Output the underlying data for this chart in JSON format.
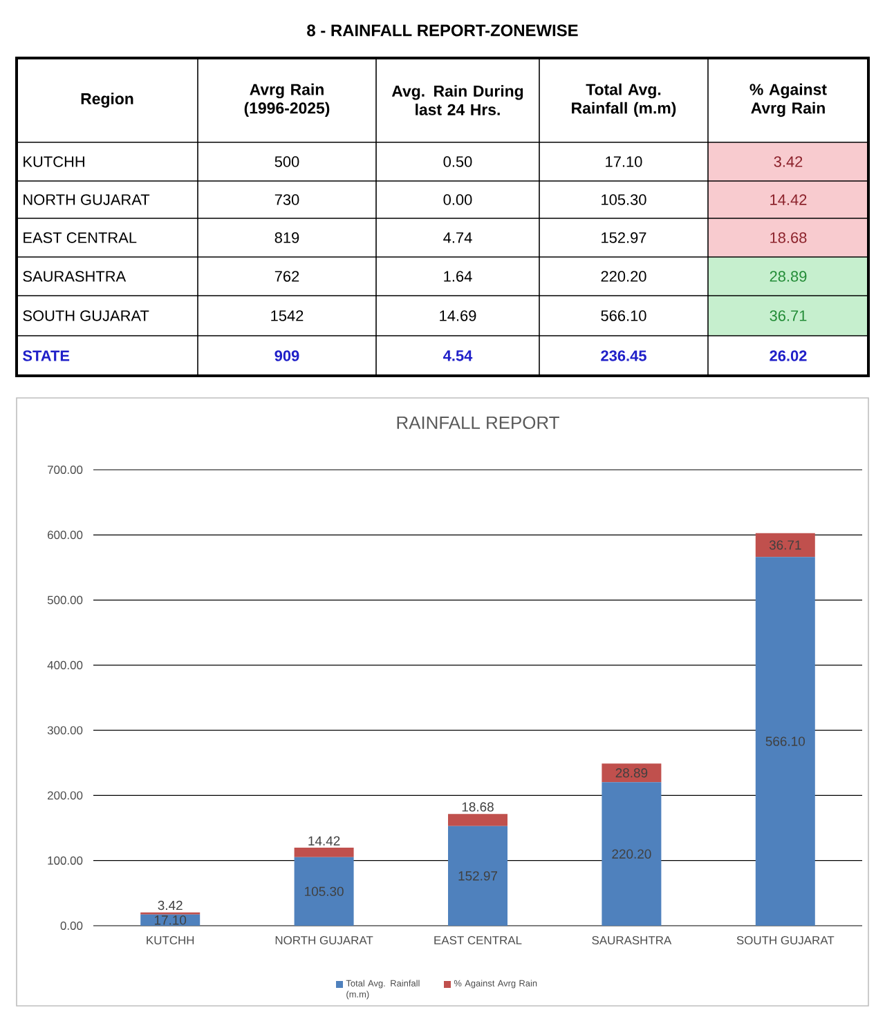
{
  "chart_data": [
    {
      "type": "other",
      "title": "8 - RAINFALL REPORT-ZONEWISE",
      "xlabel": "Region",
      "categories": [
        "KUTCHH",
        "NORTH GUJARAT",
        "EAST CENTRAL",
        "SAURASHTRA",
        "SOUTH GUJARAT",
        "STATE"
      ],
      "series": [
        {
          "name": "Avrg Rain (1996-2025)",
          "values": [
            500,
            730,
            819,
            762,
            1542,
            909
          ],
          "value_labels": [
            "500",
            "730",
            "819",
            "762",
            "1542",
            "909"
          ]
        },
        {
          "name": "Avg. Rain During last 24 Hrs.",
          "values": [
            0.5,
            0.0,
            4.74,
            1.64,
            14.69,
            4.54
          ],
          "value_labels": [
            "0.50",
            "0.00",
            "4.74",
            "1.64",
            "14.69",
            "4.54"
          ]
        },
        {
          "name": "Total Avg. Rainfall (m.m)",
          "values": [
            17.1,
            105.3,
            152.97,
            220.2,
            566.1,
            236.45
          ],
          "value_labels": [
            "17.10",
            "105.30",
            "152.97",
            "220.20",
            "566.10",
            "236.45"
          ]
        },
        {
          "name": "% Against Avrg Rain",
          "values": [
            3.42,
            14.42,
            18.68,
            28.89,
            36.71,
            26.02
          ],
          "value_labels": [
            "3.42",
            "14.42",
            "18.68",
            "28.89",
            "36.71",
            "26.02"
          ],
          "colors": [
            "#f8cbcf",
            "#f8cbcf",
            "#f8cbcf",
            "#c6efce",
            "#c6efce",
            "#ffffff"
          ]
        }
      ]
    },
    {
      "type": "bar",
      "title": "RAINFALL REPORT",
      "stacked": true,
      "grid": "y",
      "legend": "bottom",
      "categories": [
        "KUTCHH",
        "NORTH GUJARAT",
        "EAST CENTRAL",
        "SAURASHTRA",
        "SOUTH GUJARAT"
      ],
      "series": [
        {
          "name": "Total Avg. Rainfall (m.m)",
          "color": "#4f81bd",
          "values": [
            17.1,
            105.3,
            152.97,
            220.2,
            566.1
          ],
          "value_labels": [
            "17.10",
            "105.30",
            "152.97",
            "220.20",
            "566.10"
          ]
        },
        {
          "name": "% Against Avrg Rain",
          "color": "#c0504d",
          "values": [
            3.42,
            14.42,
            18.68,
            28.89,
            36.71
          ],
          "value_labels": [
            "3.42",
            "14.42",
            "18.68",
            "28.89",
            "36.71"
          ]
        }
      ],
      "ylim": [
        0,
        700
      ],
      "yticks": [
        {
          "value": 0,
          "label": "0.00"
        },
        {
          "value": 100,
          "label": "100.00"
        },
        {
          "value": 200,
          "label": "200.00"
        },
        {
          "value": 300,
          "label": "300.00"
        },
        {
          "value": 400,
          "label": "400.00"
        },
        {
          "value": 500,
          "label": "500.00"
        },
        {
          "value": 600,
          "label": "600.00"
        },
        {
          "value": 700,
          "label": "700.00"
        }
      ]
    }
  ]
}
